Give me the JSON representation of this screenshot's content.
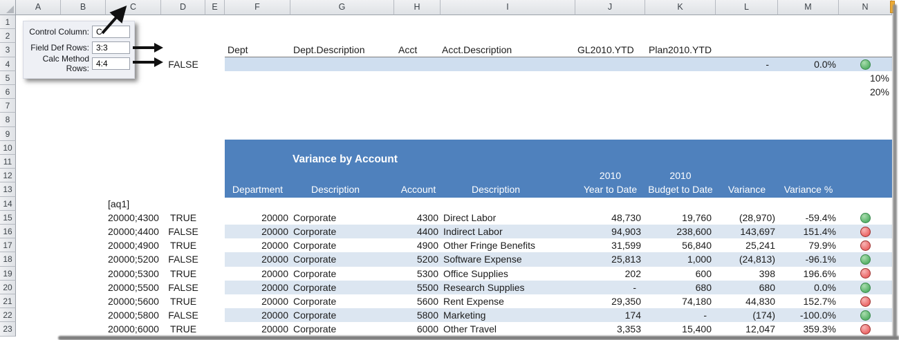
{
  "window": {
    "columns": [
      "A",
      "B",
      "C",
      "D",
      "E",
      "F",
      "G",
      "H",
      "I",
      "J",
      "K",
      "L",
      "M",
      "N"
    ],
    "rows": [
      "1",
      "2",
      "3",
      "4",
      "5",
      "6",
      "7",
      "8",
      "9",
      "10",
      "11",
      "12",
      "13",
      "14",
      "15",
      "16",
      "17",
      "18",
      "19",
      "20",
      "21",
      "22",
      "23"
    ]
  },
  "callout": {
    "fields": [
      {
        "label": "Control Column:",
        "value": "C"
      },
      {
        "label": "Field Def Rows:",
        "value": "3:3"
      },
      {
        "label": "Calc Method Rows:",
        "value": "4:4"
      }
    ]
  },
  "field_def_row": {
    "dept": "Dept",
    "dept_description": "Dept.Description",
    "acct": "Acct",
    "acct_description": "Acct.Description",
    "gl_ytd": "GL2010.YTD",
    "plan_ytd": "Plan2010.YTD"
  },
  "calc_method_row": {
    "flag": "FALSE",
    "amount": "-",
    "percent": "0.0%",
    "status": "green"
  },
  "thresholds": {
    "low": "10%",
    "high": "20%"
  },
  "report": {
    "title": "Variance by Account",
    "marker": "[aq1]",
    "headers": {
      "department": "Department",
      "description1": "Description",
      "account": "Account",
      "description2": "Description",
      "ytd_line1": "2010",
      "ytd_line2": "Year to Date",
      "budget_line1": "2010",
      "budget_line2": "Budget to Date",
      "variance": "Variance",
      "variance_pct": "Variance %"
    },
    "rows": [
      {
        "row": 15,
        "control": "20000;4300",
        "flag": "TRUE",
        "dept": "20000",
        "dept_desc": "Corporate",
        "acct": "4300",
        "acct_desc": "Direct Labor",
        "ytd": "48,730",
        "budget": "19,760",
        "variance": "(28,970)",
        "variance_pct": "-59.4%",
        "status": "green",
        "banded": false
      },
      {
        "row": 16,
        "control": "20000;4400",
        "flag": "FALSE",
        "dept": "20000",
        "dept_desc": "Corporate",
        "acct": "4400",
        "acct_desc": "Indirect Labor",
        "ytd": "94,903",
        "budget": "238,600",
        "variance": "143,697",
        "variance_pct": "151.4%",
        "status": "red",
        "banded": true
      },
      {
        "row": 17,
        "control": "20000;4900",
        "flag": "TRUE",
        "dept": "20000",
        "dept_desc": "Corporate",
        "acct": "4900",
        "acct_desc": "Other Fringe Benefits",
        "ytd": "31,599",
        "budget": "56,840",
        "variance": "25,241",
        "variance_pct": "79.9%",
        "status": "red",
        "banded": false
      },
      {
        "row": 18,
        "control": "20000;5200",
        "flag": "FALSE",
        "dept": "20000",
        "dept_desc": "Corporate",
        "acct": "5200",
        "acct_desc": "Software Expense",
        "ytd": "25,813",
        "budget": "1,000",
        "variance": "(24,813)",
        "variance_pct": "-96.1%",
        "status": "green",
        "banded": true
      },
      {
        "row": 19,
        "control": "20000;5300",
        "flag": "TRUE",
        "dept": "20000",
        "dept_desc": "Corporate",
        "acct": "5300",
        "acct_desc": "Office Supplies",
        "ytd": "202",
        "budget": "600",
        "variance": "398",
        "variance_pct": "196.6%",
        "status": "red",
        "banded": false
      },
      {
        "row": 20,
        "control": "20000;5500",
        "flag": "FALSE",
        "dept": "20000",
        "dept_desc": "Corporate",
        "acct": "5500",
        "acct_desc": "Research Supplies",
        "ytd": "-",
        "budget": "680",
        "variance": "680",
        "variance_pct": "0.0%",
        "status": "green",
        "banded": true
      },
      {
        "row": 21,
        "control": "20000;5600",
        "flag": "TRUE",
        "dept": "20000",
        "dept_desc": "Corporate",
        "acct": "5600",
        "acct_desc": "Rent Expense",
        "ytd": "29,350",
        "budget": "74,180",
        "variance": "44,830",
        "variance_pct": "152.7%",
        "status": "red",
        "banded": false
      },
      {
        "row": 22,
        "control": "20000;5800",
        "flag": "FALSE",
        "dept": "20000",
        "dept_desc": "Corporate",
        "acct": "5800",
        "acct_desc": "Marketing",
        "ytd": "174",
        "budget": "-",
        "variance": "(174)",
        "variance_pct": "-100.0%",
        "status": "green",
        "banded": true
      },
      {
        "row": 23,
        "control": "20000;6000",
        "flag": "TRUE",
        "dept": "20000",
        "dept_desc": "Corporate",
        "acct": "6000",
        "acct_desc": "Other Travel",
        "ytd": "3,353",
        "budget": "15,400",
        "variance": "12,047",
        "variance_pct": "359.3%",
        "status": "red",
        "banded": false
      }
    ]
  },
  "colors": {
    "report_header": "#4f81bd",
    "band": "#dce6f1",
    "calc_row_band": "#cfdeef",
    "status_green": "#57b168",
    "status_red": "#eb6767"
  }
}
